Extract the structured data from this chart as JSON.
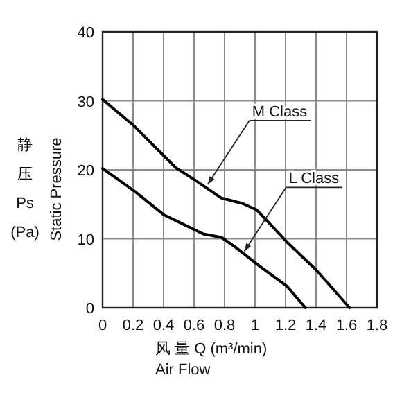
{
  "chart_data": {
    "type": "line",
    "xlabel": "风 量 Q (m³/min)",
    "ylabel": "Static Pressure",
    "xlim": [
      0,
      1.8
    ],
    "xticks": [
      0,
      0.2,
      0.4,
      0.6,
      0.8,
      1.0,
      1.2,
      1.4,
      1.6,
      1.8
    ],
    "ylim": [
      0,
      40
    ],
    "yticks": [
      0,
      10,
      20,
      30,
      40
    ],
    "grid": true,
    "marker": "none",
    "line_style": "solid",
    "series": [
      {
        "color": "#000000",
        "x": [
          0,
          0.21,
          0.48,
          0.6,
          0.78,
          0.92,
          1.01,
          1.21,
          1.4,
          1.62
        ],
        "values": [
          30.2,
          26.3,
          20.3,
          18.6,
          15.9,
          15.1,
          14.2,
          9.5,
          5.5,
          0
        ]
      },
      {
        "color": "#000000",
        "x": [
          0,
          0.21,
          0.4,
          0.66,
          0.78,
          0.87,
          1.02,
          1.21,
          1.33
        ],
        "values": [
          20.2,
          16.9,
          13.5,
          10.7,
          10.2,
          8.8,
          6.2,
          3.1,
          0
        ]
      }
    ],
    "annotations": [
      {
        "text": "M Class",
        "x": 0.69,
        "y": 17.9
      },
      {
        "text": "L Class",
        "x": 0.93,
        "y": 8.2
      },
      "Air Flow",
      "静压",
      "Ps",
      "(Pa)"
    ]
  }
}
